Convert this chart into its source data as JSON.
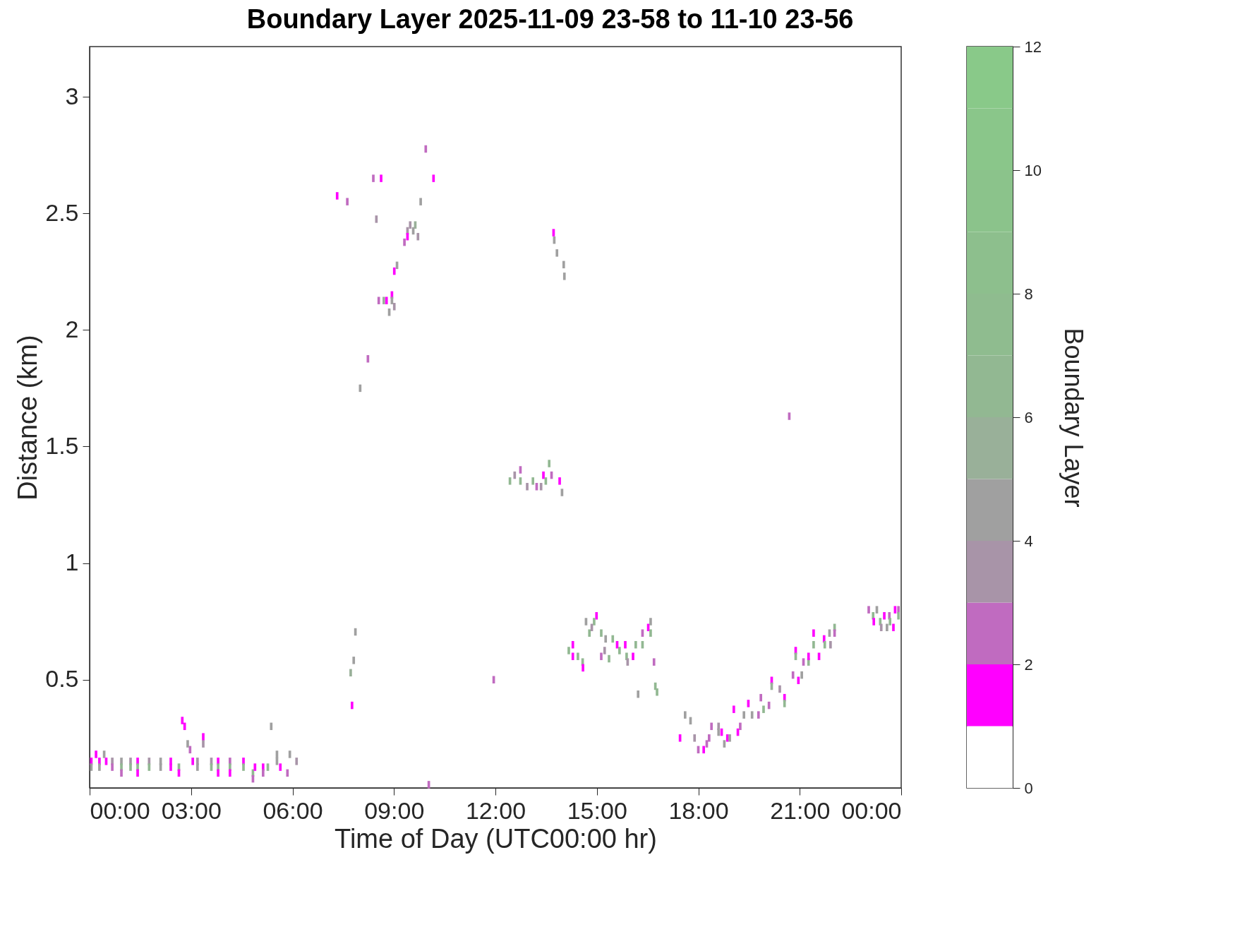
{
  "chart_data": {
    "type": "scatter",
    "title": "Boundary Layer 2025-11-09 23-58 to 11-10 23-56",
    "xlabel": "Time of Day (UTC00:00 hr)",
    "ylabel": "Distance (km)",
    "clabel": "Boundary Layer",
    "xlim": [
      0,
      24
    ],
    "ylim": [
      0.036,
      3.215
    ],
    "xticks": [
      {
        "value": 0,
        "label": "00:00"
      },
      {
        "value": 3,
        "label": "03:00"
      },
      {
        "value": 6,
        "label": "06:00"
      },
      {
        "value": 9,
        "label": "09:00"
      },
      {
        "value": 12,
        "label": "12:00"
      },
      {
        "value": 15,
        "label": "15:00"
      },
      {
        "value": 18,
        "label": "18:00"
      },
      {
        "value": 21,
        "label": "21:00"
      },
      {
        "value": 24,
        "label": "00:00"
      }
    ],
    "yticks": [
      0.5,
      1,
      1.5,
      2,
      2.5,
      3
    ],
    "clim": [
      0,
      12
    ],
    "cticks": [
      0,
      2,
      4,
      6,
      8,
      10,
      12
    ],
    "grid": false,
    "legend": false,
    "marker": "square",
    "x": [
      0.05,
      0.05,
      0.19,
      0.29,
      0.29,
      0.43,
      0.49,
      0.67,
      0.67,
      0.94,
      0.94,
      0.94,
      1.21,
      1.21,
      1.42,
      1.42,
      1.42,
      1.76,
      1.76,
      2.1,
      2.1,
      2.4,
      2.4,
      2.64,
      2.64,
      2.74,
      2.81,
      2.9,
      2.97,
      3.05,
      3.19,
      3.19,
      3.36,
      3.36,
      3.6,
      3.6,
      3.8,
      3.8,
      3.8,
      4.15,
      4.15,
      4.15,
      4.55,
      4.55,
      4.83,
      4.83,
      4.89,
      5.13,
      5.13,
      5.27,
      5.37,
      5.54,
      5.54,
      5.64,
      5.85,
      5.92,
      6.12,
      9.94,
      8.39,
      8.62,
      10.17,
      7.32,
      7.62,
      9.79,
      8.48,
      9.48,
      9.63,
      9.4,
      9.57,
      9.71,
      9.4,
      9.31,
      9.09,
      9.01,
      8.94,
      8.55,
      8.7,
      8.78,
      8.94,
      9.01,
      8.86,
      8.23,
      8.0,
      7.86,
      7.81,
      7.72,
      7.76,
      10.03,
      20.69,
      13.72,
      13.74,
      13.82,
      14.02,
      14.04,
      12.43,
      12.57,
      12.74,
      12.74,
      12.94,
      13.11,
      13.22,
      13.35,
      13.42,
      13.49,
      13.59,
      13.66,
      13.9,
      13.97,
      14.99,
      14.68,
      14.92,
      14.85,
      14.78,
      15.13,
      14.29,
      14.17,
      14.29,
      14.44,
      14.58,
      14.59,
      15.26,
      15.47,
      15.23,
      15.13,
      15.36,
      15.6,
      15.67,
      15.84,
      15.88,
      15.91,
      16.07,
      16.15,
      16.35,
      16.35,
      16.52,
      16.59,
      16.59,
      16.69,
      16.73,
      16.78,
      16.22,
      11.95,
      17.61,
      17.77,
      17.46,
      17.89,
      18.0,
      18.16,
      18.25,
      18.32,
      18.39,
      18.6,
      18.6,
      18.69,
      18.86,
      18.77,
      18.93,
      19.17,
      19.24,
      19.05,
      19.35,
      19.59,
      19.78,
      19.48,
      19.85,
      19.93,
      20.09,
      20.17,
      20.17,
      20.41,
      20.55,
      20.55,
      20.8,
      20.96,
      21.06,
      21.11,
      21.26,
      20.88,
      20.88,
      21.26,
      21.41,
      21.41,
      21.57,
      21.72,
      21.74,
      21.91,
      21.88,
      22.03,
      22.03,
      23.04,
      23.17,
      23.19,
      23.28,
      23.38,
      23.41,
      23.5,
      23.58,
      23.65,
      23.67,
      23.77,
      23.82,
      23.92,
      23.92
    ],
    "values": [
      0.15,
      0.125,
      0.18,
      0.15,
      0.125,
      0.18,
      0.15,
      0.15,
      0.125,
      0.15,
      0.125,
      0.1,
      0.15,
      0.125,
      0.15,
      0.125,
      0.1,
      0.15,
      0.125,
      0.15,
      0.125,
      0.15,
      0.125,
      0.125,
      0.1,
      0.325,
      0.3,
      0.225,
      0.2,
      0.15,
      0.15,
      0.125,
      0.255,
      0.225,
      0.15,
      0.125,
      0.15,
      0.125,
      0.1,
      0.15,
      0.125,
      0.1,
      0.15,
      0.125,
      0.1,
      0.075,
      0.125,
      0.125,
      0.1,
      0.125,
      0.3,
      0.18,
      0.15,
      0.125,
      0.1,
      0.18,
      0.15,
      2.776,
      2.65,
      2.65,
      2.65,
      2.575,
      2.55,
      2.55,
      2.475,
      2.45,
      2.45,
      2.425,
      2.425,
      2.4,
      2.4,
      2.376,
      2.277,
      2.252,
      2.15,
      2.126,
      2.126,
      2.126,
      2.126,
      2.1,
      2.076,
      1.876,
      1.75,
      0.705,
      0.583,
      0.53,
      0.39,
      0.05,
      1.63,
      2.417,
      2.385,
      2.33,
      2.28,
      2.23,
      1.352,
      1.377,
      1.4,
      1.352,
      1.328,
      1.352,
      1.328,
      1.328,
      1.377,
      1.352,
      1.427,
      1.377,
      1.352,
      1.303,
      0.774,
      0.749,
      0.749,
      0.724,
      0.7,
      0.7,
      0.65,
      0.625,
      0.6,
      0.6,
      0.576,
      0.551,
      0.675,
      0.675,
      0.625,
      0.6,
      0.59,
      0.65,
      0.625,
      0.65,
      0.6,
      0.576,
      0.6,
      0.65,
      0.7,
      0.65,
      0.724,
      0.749,
      0.7,
      0.576,
      0.472,
      0.447,
      0.438,
      0.5,
      0.349,
      0.324,
      0.25,
      0.25,
      0.2,
      0.2,
      0.225,
      0.25,
      0.3,
      0.3,
      0.275,
      0.275,
      0.25,
      0.225,
      0.25,
      0.275,
      0.3,
      0.373,
      0.349,
      0.349,
      0.349,
      0.398,
      0.423,
      0.373,
      0.39,
      0.497,
      0.472,
      0.46,
      0.423,
      0.398,
      0.52,
      0.497,
      0.52,
      0.576,
      0.576,
      0.625,
      0.6,
      0.6,
      0.7,
      0.65,
      0.6,
      0.675,
      0.65,
      0.65,
      0.7,
      0.724,
      0.7,
      0.8,
      0.774,
      0.749,
      0.8,
      0.749,
      0.724,
      0.774,
      0.724,
      0.774,
      0.749,
      0.724,
      0.8,
      0.8,
      0.774
    ],
    "cvalues": [
      1.5,
      4.5,
      1.5,
      1.5,
      4.5,
      4.5,
      1.5,
      3.5,
      2.5,
      4.5,
      6.5,
      2.5,
      3.5,
      6.5,
      1.5,
      6.5,
      1.5,
      3.5,
      6.5,
      4.5,
      4.5,
      1.5,
      1.5,
      6.5,
      1.5,
      1.5,
      1.5,
      4.5,
      2.5,
      1.5,
      3.5,
      4.5,
      1.5,
      3.5,
      3.5,
      6.5,
      1.5,
      6.5,
      1.5,
      2.5,
      6.5,
      1.5,
      1.5,
      6.5,
      6.5,
      2.5,
      1.5,
      1.5,
      2.5,
      6.5,
      4.5,
      4.5,
      4.5,
      1.5,
      2.5,
      4.5,
      3.5,
      2.5,
      2.5,
      1.5,
      1.5,
      1.5,
      2.5,
      4.5,
      3.5,
      3.5,
      5.5,
      3.5,
      4.5,
      3.5,
      1.5,
      2.5,
      4.5,
      1.5,
      1.5,
      2.5,
      5.5,
      1.5,
      4.5,
      3.5,
      4.5,
      2.5,
      4.5,
      4.5,
      4.5,
      5.5,
      1.5,
      2.5,
      2.5,
      1.5,
      4.5,
      4.5,
      4.5,
      4.5,
      6.5,
      3.5,
      2.5,
      6.5,
      3.5,
      6.5,
      2.5,
      3.5,
      1.5,
      6.5,
      6.5,
      2.5,
      1.5,
      4.5,
      1.5,
      4.5,
      6.5,
      3.5,
      6.5,
      6.5,
      1.5,
      6.5,
      1.5,
      6.5,
      6.5,
      1.5,
      4.5,
      6.5,
      3.5,
      2.5,
      6.5,
      1.5,
      6.5,
      1.5,
      6.5,
      3.5,
      1.5,
      6.5,
      2.5,
      6.5,
      1.5,
      4.5,
      6.5,
      2.5,
      6.5,
      6.5,
      4.5,
      2.5,
      4.5,
      4.5,
      1.5,
      3.5,
      2.5,
      1.5,
      2.5,
      2.5,
      2.5,
      3.5,
      4.5,
      1.5,
      1.5,
      4.5,
      4.5,
      1.5,
      2.5,
      1.5,
      4.5,
      4.5,
      2.5,
      1.5,
      2.5,
      6.5,
      2.5,
      1.5,
      5.5,
      3.5,
      1.5,
      6.5,
      2.5,
      1.5,
      4.5,
      2.5,
      6.5,
      1.5,
      6.5,
      1.5,
      1.5,
      6.5,
      1.5,
      1.5,
      6.5,
      3.5,
      4.5,
      6.5,
      2.5,
      2.5,
      6.5,
      1.5,
      4.5,
      6.5,
      3.5,
      1.5,
      4.5,
      2.5,
      6.5,
      1.5,
      1.5,
      2.5,
      6.5
    ]
  }
}
